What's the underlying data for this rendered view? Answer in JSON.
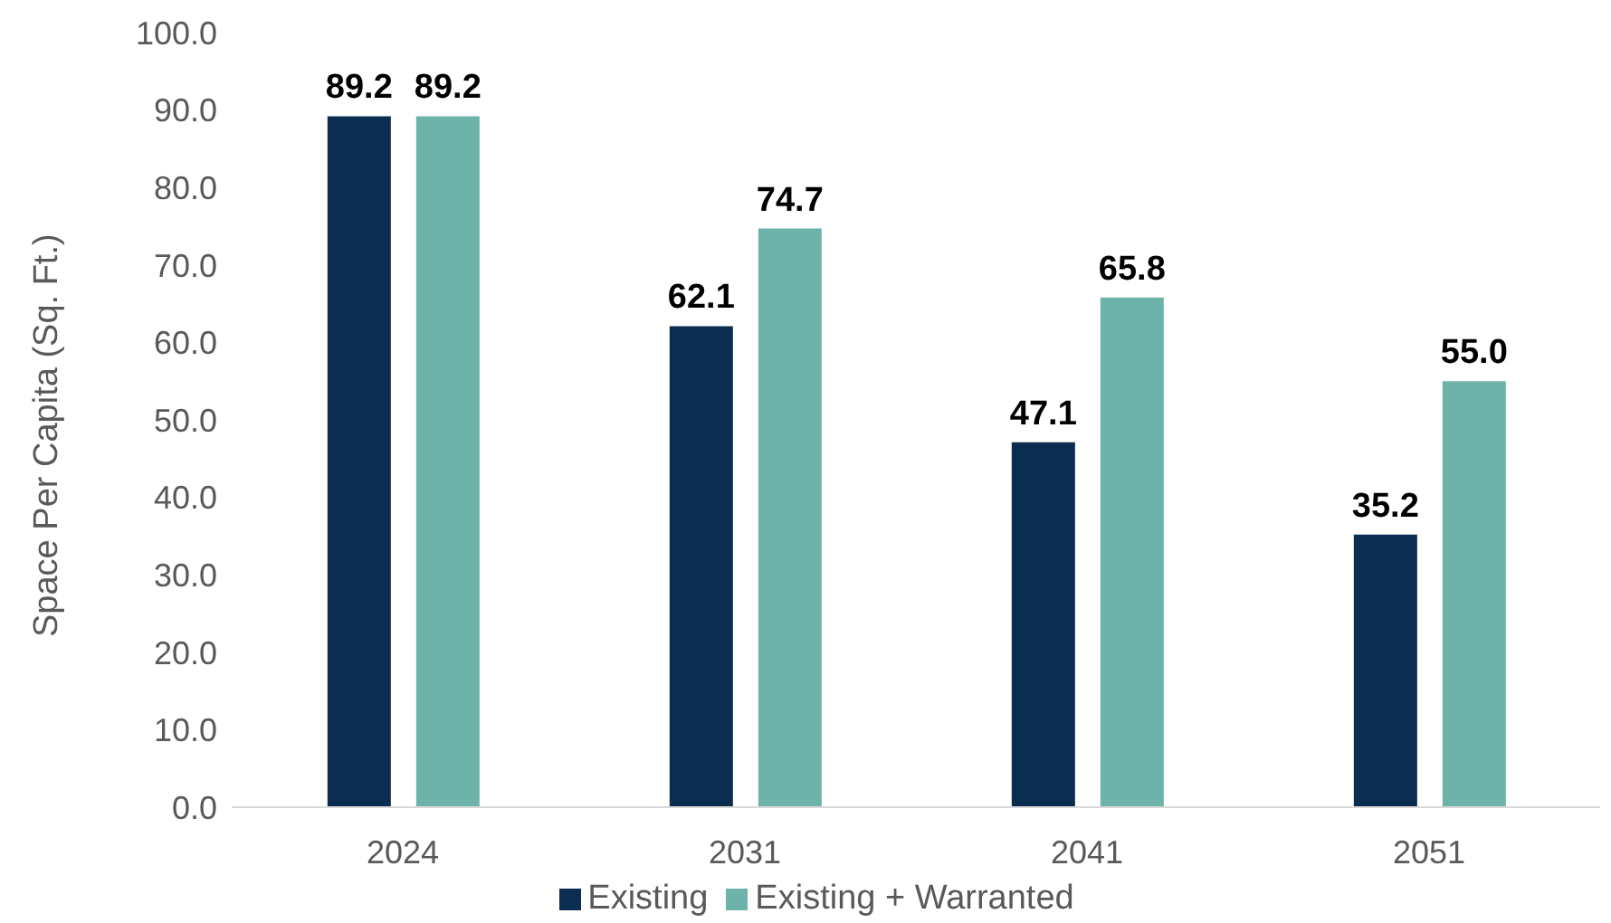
{
  "chart_data": {
    "type": "bar",
    "ylabel": "Space Per Capita (Sq. Ft.)",
    "categories": [
      "2024",
      "2031",
      "2041",
      "2051"
    ],
    "series": [
      {
        "name": "Existing",
        "color": "#0b2d4f",
        "values": [
          89.2,
          62.1,
          47.1,
          35.2
        ],
        "value_labels": [
          "89.2",
          "62.1",
          "47.1",
          "35.2"
        ]
      },
      {
        "name": "Existing + Warranted",
        "color": "#6db3a9",
        "values": [
          89.2,
          74.7,
          65.8,
          55.0
        ],
        "value_labels": [
          "89.2",
          "74.7",
          "65.8",
          "55.0"
        ]
      }
    ],
    "ylim": [
      0,
      100
    ],
    "yticks": [
      {
        "value": 0,
        "label": "0.0"
      },
      {
        "value": 10,
        "label": "10.0"
      },
      {
        "value": 20,
        "label": "20.0"
      },
      {
        "value": 30,
        "label": "30.0"
      },
      {
        "value": 40,
        "label": "40.0"
      },
      {
        "value": 50,
        "label": "50.0"
      },
      {
        "value": 60,
        "label": "60.0"
      },
      {
        "value": 70,
        "label": "70.0"
      },
      {
        "value": 80,
        "label": "80.0"
      },
      {
        "value": 90,
        "label": "90.0"
      },
      {
        "value": 100,
        "label": "100.0"
      }
    ],
    "grid": false,
    "legend": "bottom"
  }
}
